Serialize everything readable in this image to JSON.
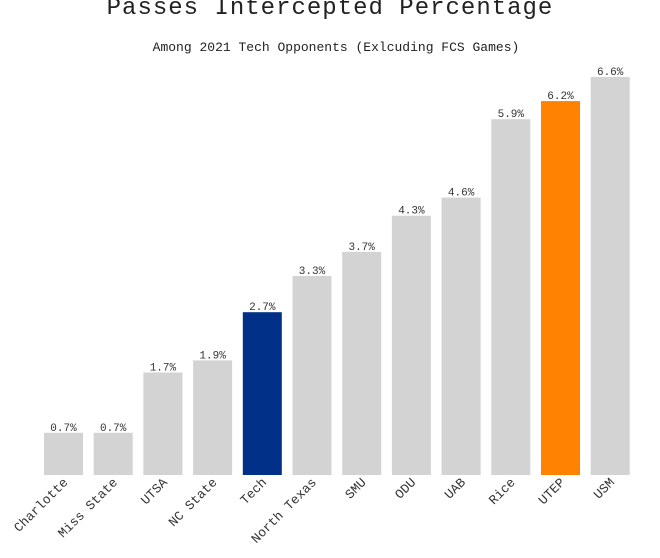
{
  "chart_data": {
    "type": "bar",
    "title": "Passes Intercepted Percentage",
    "subtitle": "Among 2021 Tech Opponents (Exlcuding FCS Games)",
    "xlabel": "",
    "ylabel": "",
    "ylim": [
      0,
      6.6
    ],
    "grid": false,
    "categories": [
      "Charlotte",
      "Miss State",
      "UTSA",
      "NC State",
      "Tech",
      "North Texas",
      "SMU",
      "ODU",
      "UAB",
      "Rice",
      "UTEP",
      "USM"
    ],
    "values": [
      0.7,
      0.7,
      1.7,
      1.9,
      2.7,
      3.3,
      3.7,
      4.3,
      4.6,
      5.9,
      6.2,
      6.6
    ],
    "data_labels": [
      "0.7%",
      "0.7%",
      "1.7%",
      "1.9%",
      "2.7%",
      "3.3%",
      "3.7%",
      "4.3%",
      "4.6%",
      "5.9%",
      "6.2%",
      "6.6%"
    ],
    "colors": {
      "default": "#d3d3d3",
      "Tech": "#003087",
      "UTEP": "#ff8200"
    }
  }
}
